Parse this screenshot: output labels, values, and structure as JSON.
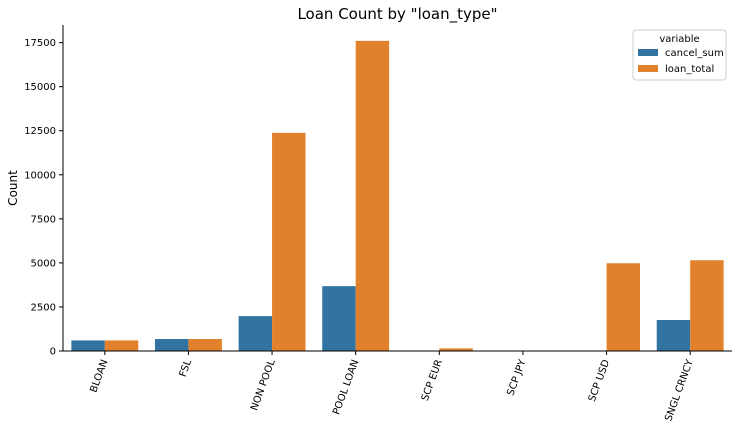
{
  "chart_data": {
    "type": "bar",
    "title": "Loan Count by \"loan_type\"",
    "xlabel": "",
    "ylabel": "Count",
    "ylim": [
      0,
      18500
    ],
    "yticks": [
      0,
      2500,
      5000,
      7500,
      10000,
      12500,
      15000,
      17500
    ],
    "categories": [
      "BLOAN",
      "FSL",
      "NON POOL",
      "POOL LOAN",
      "SCP EUR",
      "SCP JPY",
      "SCP USD",
      "SNGL CRNCY"
    ],
    "series": [
      {
        "name": "cancel_sum",
        "color": "#3274a1",
        "values": [
          600,
          680,
          1980,
          3680,
          0,
          0,
          0,
          1760
        ]
      },
      {
        "name": "loan_total",
        "color": "#e1812c",
        "values": [
          600,
          680,
          12380,
          17600,
          150,
          0,
          4980,
          5150
        ]
      }
    ],
    "legend": {
      "title": "variable",
      "placement": "top-right"
    },
    "grid": false
  }
}
